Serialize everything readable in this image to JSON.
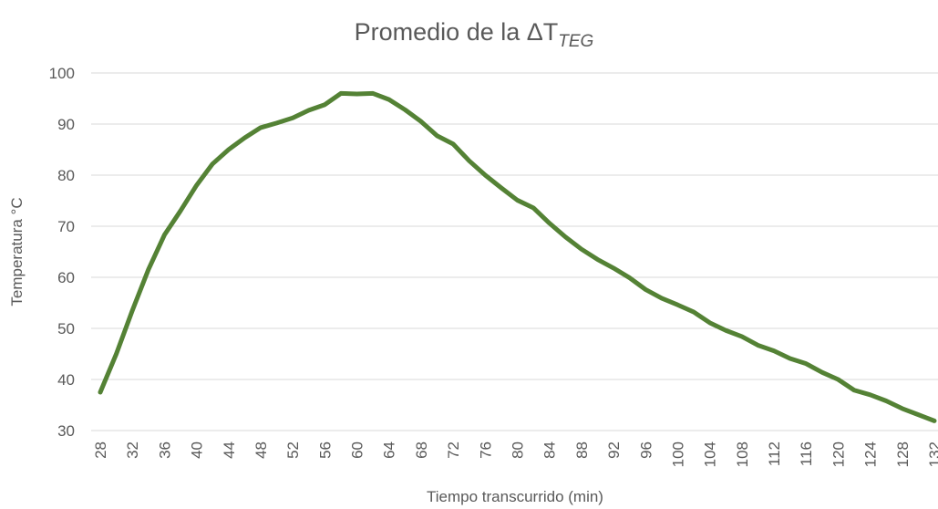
{
  "chart_data": {
    "type": "line",
    "title": "Promedio de la ΔT",
    "title_subscript": "TEG",
    "x_label": "Tiempo transcurrido (min)",
    "y_label": "Temperatura °C",
    "x": [
      28,
      30,
      32,
      34,
      36,
      38,
      40,
      42,
      44,
      46,
      48,
      50,
      52,
      54,
      56,
      58,
      60,
      62,
      64,
      66,
      68,
      70,
      72,
      74,
      76,
      78,
      80,
      82,
      84,
      86,
      88,
      90,
      92,
      94,
      96,
      98,
      100,
      102,
      104,
      106,
      108,
      110,
      112,
      114,
      116,
      118,
      120,
      122,
      124,
      126,
      128,
      130,
      132
    ],
    "series": [
      {
        "name": "Promedio",
        "color": "#548235",
        "values": [
          37.5,
          45,
          53.5,
          61.5,
          68.3,
          73,
          78,
          82.2,
          85,
          87.3,
          89.3,
          90.2,
          91.2,
          92.7,
          93.8,
          96,
          95.9,
          96,
          94.8,
          92.8,
          90.5,
          87.7,
          86.1,
          82.8,
          80,
          77.5,
          75.1,
          73.6,
          70.6,
          67.9,
          65.5,
          63.5,
          61.8,
          59.9,
          57.6,
          55.9,
          54.6,
          53.2,
          51.1,
          49.6,
          48.4,
          46.7,
          45.6,
          44.1,
          43.1,
          41.4,
          40,
          37.9,
          37,
          35.8,
          34.3,
          33.1,
          31.9
        ]
      }
    ],
    "xlim": [
      28,
      132
    ],
    "xticks": [
      28,
      32,
      36,
      40,
      44,
      48,
      52,
      56,
      60,
      64,
      68,
      72,
      76,
      80,
      84,
      88,
      92,
      96,
      100,
      104,
      108,
      112,
      116,
      120,
      124,
      128,
      132
    ],
    "ylim": [
      30,
      100
    ],
    "yticks": [
      30,
      40,
      50,
      60,
      70,
      80,
      90,
      100
    ],
    "grid": true
  }
}
